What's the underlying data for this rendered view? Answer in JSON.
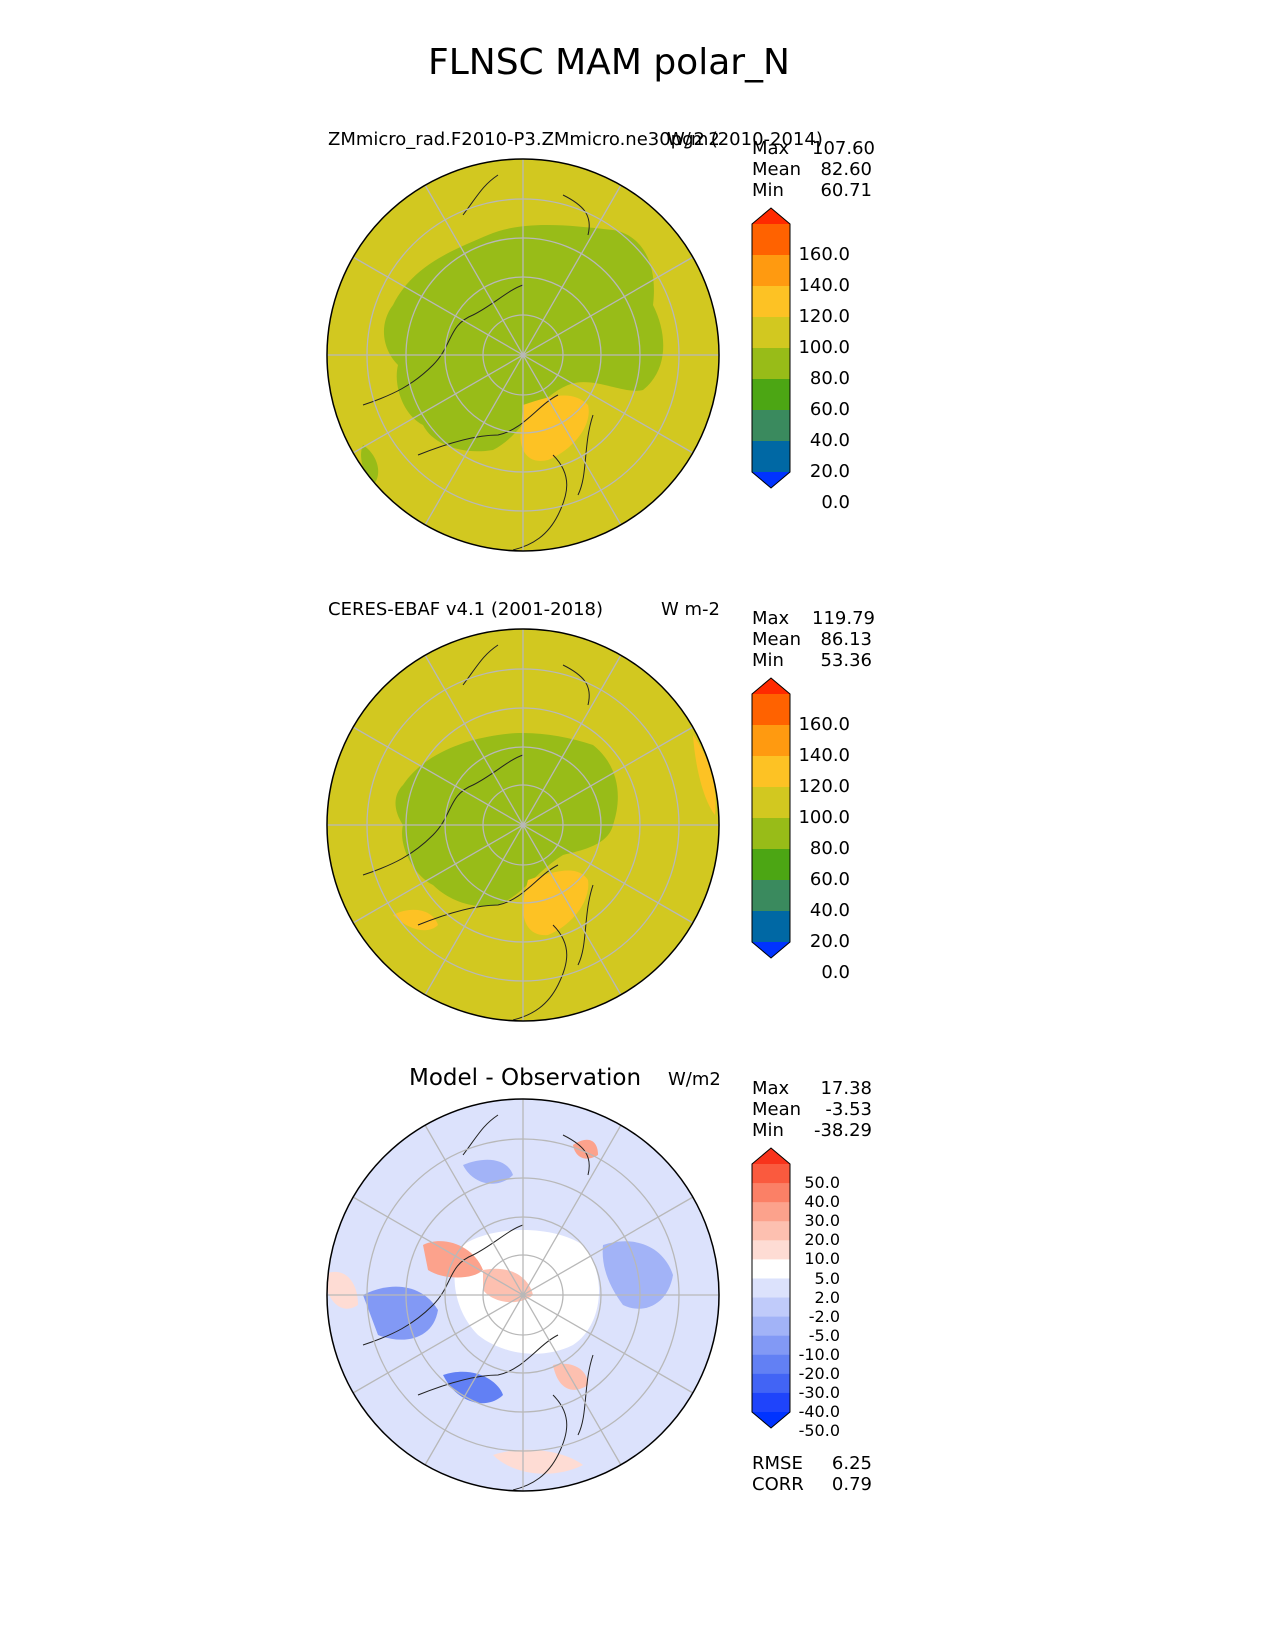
{
  "title": "FLNSC MAM polar_N",
  "panels": [
    {
      "left_title": "ZMmicro_rad.F2010-P3.ZMmicro.ne30pg2 (2010-2014)",
      "units": "W/m2",
      "stats": {
        "max_label": "Max",
        "max": "107.60",
        "mean_label": "Mean",
        "mean": "82.60",
        "min_label": "Min",
        "min": "60.71"
      },
      "colorbar": {
        "ticks": [
          "160.0",
          "140.0",
          "120.0",
          "100.0",
          "80.0",
          "60.0",
          "40.0",
          "20.0",
          "0.0"
        ],
        "colors": [
          "#ff2a00",
          "#ff6200",
          "#ff9a10",
          "#fdc224",
          "#d2c820",
          "#98bc18",
          "#4ca614",
          "#3a8a5e",
          "#0068a4",
          "#0033ff"
        ]
      }
    },
    {
      "left_title": "CERES-EBAF v4.1 (2001-2018)",
      "units": "W m-2",
      "stats": {
        "max_label": "Max",
        "max": "119.79",
        "mean_label": "Mean",
        "mean": "86.13",
        "min_label": "Min",
        "min": "53.36"
      },
      "colorbar": {
        "ticks": [
          "160.0",
          "140.0",
          "120.0",
          "100.0",
          "80.0",
          "60.0",
          "40.0",
          "20.0",
          "0.0"
        ],
        "colors": [
          "#ff2a00",
          "#ff6200",
          "#ff9a10",
          "#fdc224",
          "#d2c820",
          "#98bc18",
          "#4ca614",
          "#3a8a5e",
          "#0068a4",
          "#0033ff"
        ]
      }
    },
    {
      "center_title": "Model - Observation",
      "units": "W/m2",
      "stats": {
        "max_label": "Max",
        "max": "17.38",
        "mean_label": "Mean",
        "mean": "-3.53",
        "min_label": "Min",
        "min": "-38.29"
      },
      "colorbar": {
        "ticks": [
          "50.0",
          "40.0",
          "30.0",
          "20.0",
          "10.0",
          "5.0",
          "2.0",
          "-2.0",
          "-5.0",
          "-10.0",
          "-20.0",
          "-30.0",
          "-40.0",
          "-50.0"
        ],
        "colors": [
          "#f8331b",
          "#fa5a3e",
          "#fb8066",
          "#fca28c",
          "#fdc0b0",
          "#fedcd4",
          "#ffffff",
          "#dce2fc",
          "#c0cbfa",
          "#a2b3f7",
          "#8299f5",
          "#6280f4",
          "#4264f5",
          "#1f44fb",
          "#0033ff"
        ]
      },
      "rmse_label": "RMSE",
      "rmse": "6.25",
      "corr_label": "CORR",
      "corr": "0.79"
    }
  ]
}
